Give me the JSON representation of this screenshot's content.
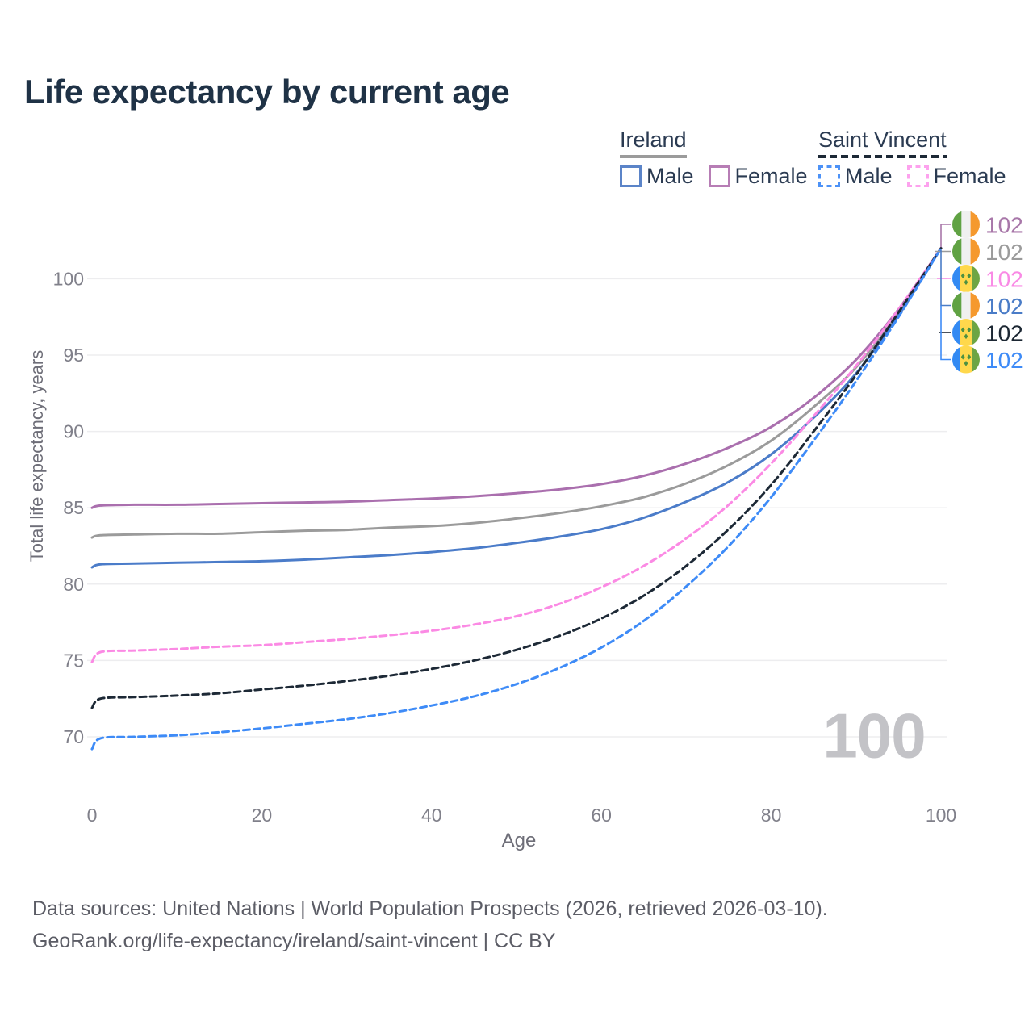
{
  "title": "Life expectancy by current age",
  "legend": {
    "groups": [
      {
        "label": "Ireland",
        "line_style": "solid",
        "underline_color": "#9b9b9b",
        "items": [
          {
            "label": "Male",
            "color": "#5b84c8",
            "dashed": false
          },
          {
            "label": "Female",
            "color": "#b77db5",
            "dashed": false
          }
        ]
      },
      {
        "label": "Saint Vincent",
        "line_style": "dashed",
        "underline_color": "#1d2936",
        "items": [
          {
            "label": "Male",
            "color": "#4d92f7",
            "dashed": true
          },
          {
            "label": "Female",
            "color": "#fda2ee",
            "dashed": true
          }
        ]
      }
    ]
  },
  "watermark": "100",
  "footer": {
    "line1": "Data sources: United Nations | World Population Prospects (2026, retrieved 2026-03-10).",
    "line2": "GeoRank.org/life-expectancy/ireland/saint-vincent | CC BY"
  },
  "chart_data": {
    "type": "line",
    "title": "Life expectancy by current age",
    "xlabel": "Age",
    "ylabel": "Total life expectancy, years",
    "xticks": [
      0,
      20,
      40,
      60,
      80,
      100
    ],
    "yticks": [
      70,
      75,
      80,
      85,
      90,
      95,
      100
    ],
    "xlim": [
      0,
      100
    ],
    "ylim": [
      67.5,
      103
    ],
    "grid": "horizontal",
    "legend_position": "top-right",
    "ages": [
      0,
      1,
      5,
      10,
      15,
      20,
      25,
      30,
      35,
      40,
      45,
      50,
      55,
      60,
      65,
      70,
      75,
      80,
      85,
      90,
      95,
      100
    ],
    "series": [
      {
        "name": "Ireland — Both sexes",
        "color": "#9b9b9b",
        "dash": false,
        "values": [
          83.05,
          83.2,
          83.25,
          83.3,
          83.3,
          83.4,
          83.5,
          83.55,
          83.7,
          83.8,
          84.0,
          84.3,
          84.65,
          85.1,
          85.7,
          86.6,
          87.8,
          89.4,
          91.6,
          94.2,
          97.8,
          102.0
        ]
      },
      {
        "name": "Ireland — Male",
        "color": "#4b7cc9",
        "dash": false,
        "values": [
          81.1,
          81.3,
          81.35,
          81.4,
          81.45,
          81.5,
          81.6,
          81.75,
          81.9,
          82.1,
          82.35,
          82.7,
          83.1,
          83.6,
          84.35,
          85.4,
          86.7,
          88.5,
          90.9,
          93.8,
          97.6,
          102.0
        ]
      },
      {
        "name": "Ireland — Female",
        "color": "#aa6fae",
        "dash": false,
        "values": [
          85.0,
          85.15,
          85.2,
          85.2,
          85.25,
          85.3,
          85.35,
          85.4,
          85.5,
          85.6,
          85.75,
          85.95,
          86.2,
          86.55,
          87.1,
          87.9,
          88.95,
          90.3,
          92.2,
          94.7,
          98.0,
          102.0
        ]
      },
      {
        "name": "Saint Vincent — Female",
        "color": "#fb8ae4",
        "dash": true,
        "values": [
          74.9,
          75.55,
          75.65,
          75.75,
          75.9,
          76.0,
          76.2,
          76.4,
          76.65,
          76.95,
          77.35,
          77.9,
          78.7,
          79.8,
          81.2,
          83.0,
          85.2,
          87.9,
          91.0,
          94.3,
          98.0,
          102.0
        ]
      },
      {
        "name": "Saint Vincent — Both sexes",
        "color": "#1d2936",
        "dash": true,
        "values": [
          71.9,
          72.5,
          72.6,
          72.7,
          72.85,
          73.1,
          73.35,
          73.65,
          74.0,
          74.45,
          75.0,
          75.7,
          76.6,
          77.75,
          79.25,
          81.2,
          83.6,
          86.5,
          90.0,
          93.7,
          97.8,
          102.0
        ]
      },
      {
        "name": "Saint Vincent — Male",
        "color": "#3e8bf7",
        "dash": true,
        "values": [
          69.2,
          69.9,
          70.0,
          70.1,
          70.3,
          70.55,
          70.85,
          71.15,
          71.55,
          72.05,
          72.65,
          73.45,
          74.5,
          75.85,
          77.6,
          79.85,
          82.5,
          85.7,
          89.4,
          93.3,
          97.5,
          102.0
        ]
      }
    ],
    "end_labels": [
      {
        "series": "Ireland — Female",
        "flag": "ireland",
        "text": "102",
        "color": "#a877a9"
      },
      {
        "series": "Ireland — Both sexes",
        "flag": "ireland",
        "text": "102",
        "color": "#9b9b9b"
      },
      {
        "series": "Saint Vincent — Female",
        "flag": "saint-vincent",
        "text": "102",
        "color": "#f98ae5"
      },
      {
        "series": "Ireland — Male",
        "flag": "ireland",
        "text": "102",
        "color": "#4a7cc7"
      },
      {
        "series": "Saint Vincent — Both sexes",
        "flag": "saint-vincent",
        "text": "102",
        "color": "#1c2733"
      },
      {
        "series": "Saint Vincent — Male",
        "flag": "saint-vincent",
        "text": "102",
        "color": "#3e8bf7"
      }
    ]
  }
}
